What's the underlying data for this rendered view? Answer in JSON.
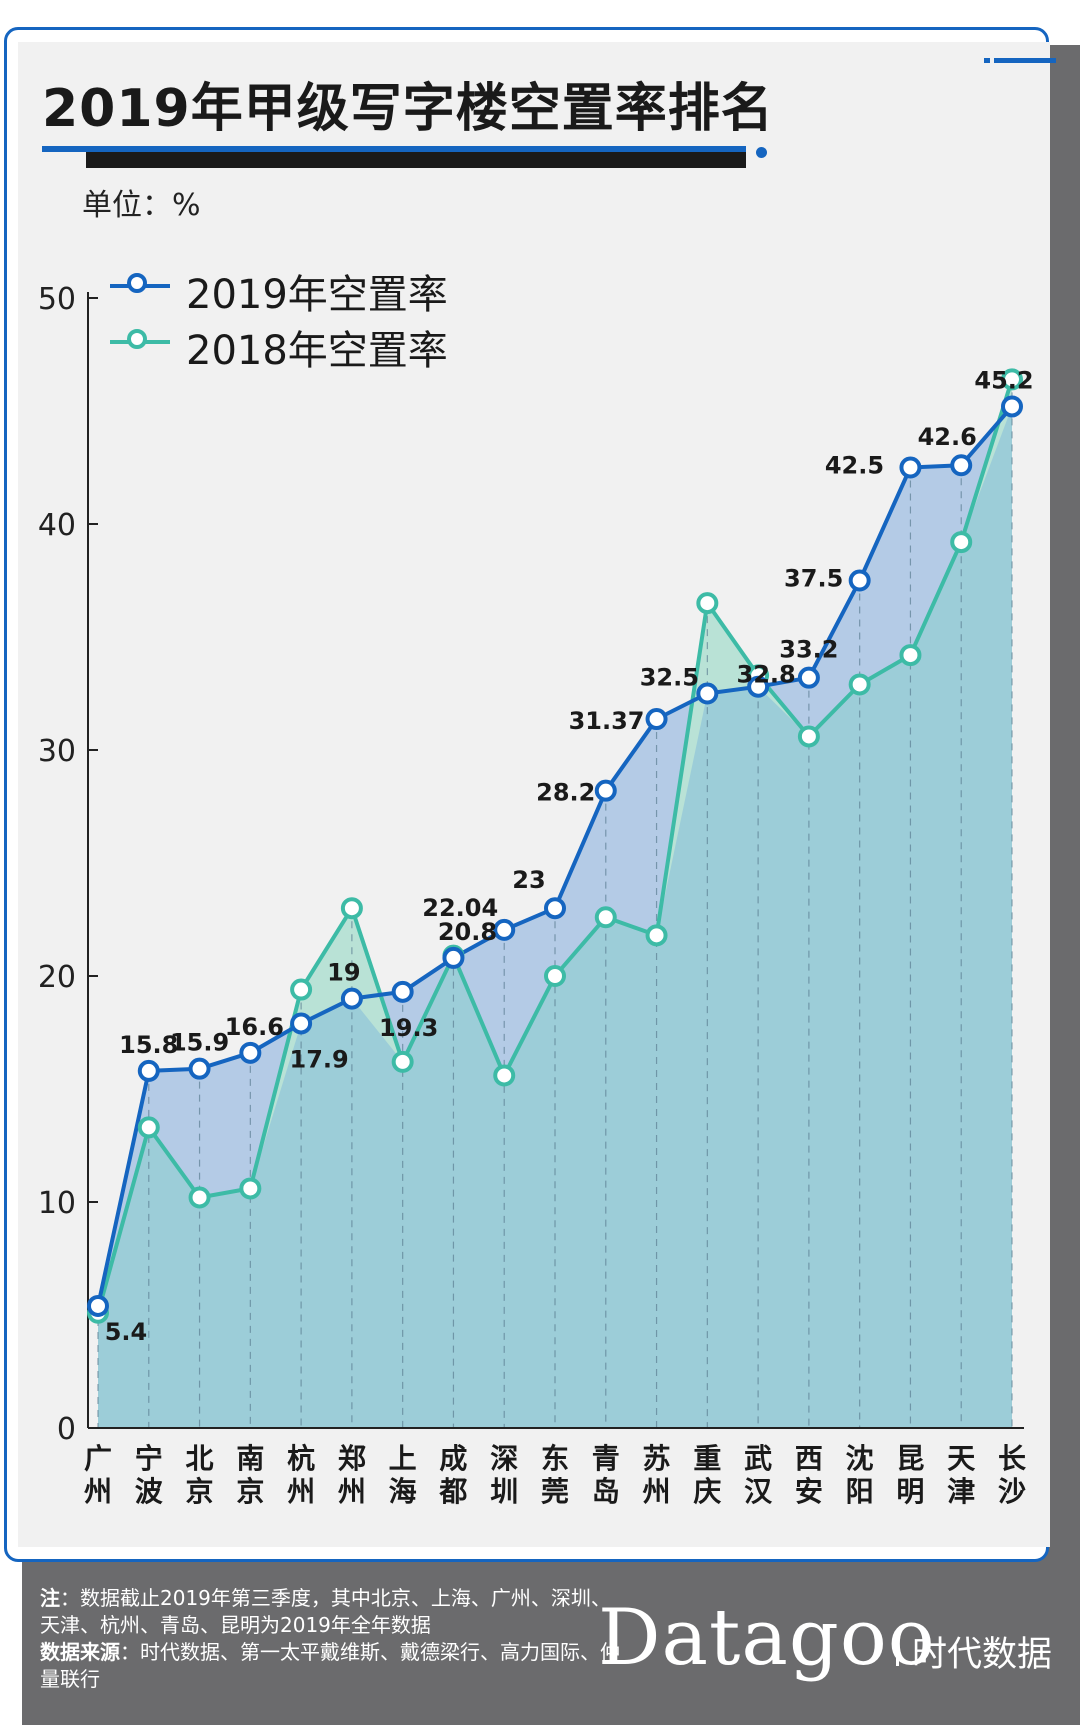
{
  "title": "2019年甲级写字楼空置率排名",
  "unit_label": "单位：%",
  "legend": [
    {
      "label": "2019年空置率",
      "color": "#1565c0"
    },
    {
      "label": "2018年空置率",
      "color": "#3dbba6"
    }
  ],
  "footer": {
    "note_label": "注",
    "note_text": "：数据截止2019年第三季度，其中北京、上海、广州、深圳、天津、杭州、青岛、昆明为2019年全年数据",
    "source_label": "数据来源",
    "source_text": "：时代数据、第一太平戴维斯、戴德梁行、高力国际、仲量联行"
  },
  "brand": {
    "name": "Datagoo",
    "sub": "时代数据"
  },
  "colors": {
    "accent": "#1565c0",
    "series2018": "#3dbba6",
    "area2019": "#b4cbe6",
    "area2018": "#9ccdd8",
    "area2018_above": "#b9e2d6",
    "footer_bg": "#6b6b6d"
  },
  "chart_data": {
    "type": "line",
    "categories": [
      "广州",
      "宁波",
      "北京",
      "南京",
      "杭州",
      "郑州",
      "上海",
      "成都",
      "深圳",
      "东莞",
      "青岛",
      "苏州",
      "重庆",
      "武汉",
      "西安",
      "沈阳",
      "昆明",
      "天津",
      "长沙"
    ],
    "series": [
      {
        "name": "2019年空置率",
        "values": [
          5.4,
          15.8,
          15.9,
          16.6,
          17.9,
          19,
          19.3,
          20.8,
          22.04,
          23,
          28.2,
          31.37,
          32.5,
          32.8,
          33.2,
          37.5,
          42.5,
          42.6,
          45.2
        ],
        "labels": [
          "5.4",
          "15.8",
          "15.9",
          "16.6",
          "17.9",
          "19",
          "19.3",
          "20.8",
          "22.04",
          "23",
          "28.2",
          "31.37",
          "32.5",
          "32.8",
          "33.2",
          "37.5",
          "42.5",
          "42.6",
          "45.2"
        ]
      },
      {
        "name": "2018年空置率",
        "values": [
          5.1,
          13.3,
          10.2,
          10.6,
          19.4,
          23.0,
          16.2,
          20.9,
          15.6,
          20.0,
          22.6,
          21.8,
          36.5,
          33.3,
          30.6,
          32.9,
          34.2,
          39.2,
          46.4
        ]
      }
    ],
    "yticks": [
      0,
      10,
      20,
      30,
      40,
      50
    ],
    "ylim": [
      0,
      50
    ],
    "grid": false,
    "legend_position": "top-left"
  }
}
